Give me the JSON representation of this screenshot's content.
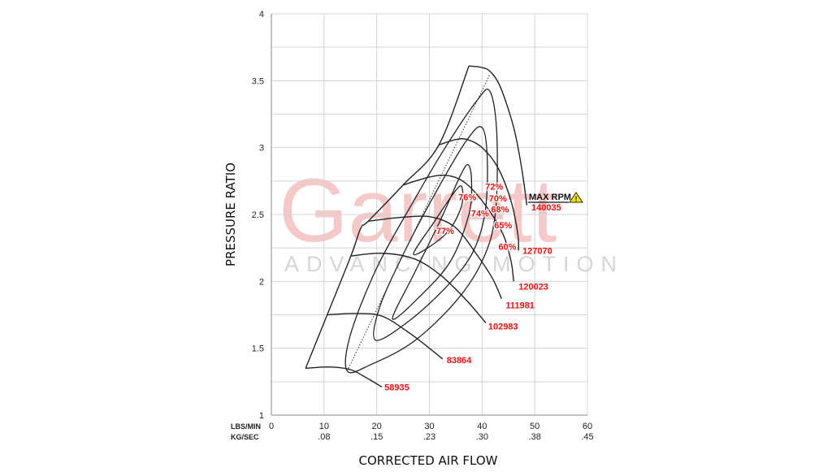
{
  "chart_data": {
    "type": "line",
    "title": "",
    "xlabel": "CORRECTED AIR FLOW",
    "ylabel": "PRESSURE RATIO",
    "xlim": [
      0,
      60
    ],
    "ylim": [
      1,
      4
    ],
    "grid": true,
    "x_unit_primary": "LBS/MIN",
    "x_unit_secondary": "KG/SEC",
    "x_ticks": [
      0,
      10,
      20,
      30,
      40,
      50,
      60
    ],
    "x_tick_labels": [
      "0",
      "10",
      "20",
      "30",
      "40",
      "50",
      "60"
    ],
    "x_secondary_tick_labels": [
      "",
      ".08",
      ".15",
      ".23",
      ".30",
      ".38",
      ".45"
    ],
    "y_ticks": [
      1,
      1.5,
      2,
      2.5,
      3,
      3.5,
      4
    ],
    "y_tick_labels": [
      "1",
      "1.5",
      "2",
      "2.5",
      "3",
      "3.5",
      "4"
    ],
    "speed_lines": [
      {
        "name": "58935",
        "points": [
          [
            6.5,
            1.35
          ],
          [
            11,
            1.36
          ],
          [
            15,
            1.34
          ],
          [
            18,
            1.28
          ],
          [
            21,
            1.21
          ]
        ]
      },
      {
        "name": "83864",
        "points": [
          [
            10.6,
            1.75
          ],
          [
            16,
            1.76
          ],
          [
            21,
            1.74
          ],
          [
            26,
            1.62
          ],
          [
            30,
            1.5
          ],
          [
            32.5,
            1.42
          ]
        ]
      },
      {
        "name": "102983",
        "points": [
          [
            15.1,
            2.19
          ],
          [
            21,
            2.21
          ],
          [
            27,
            2.17
          ],
          [
            32,
            2.05
          ],
          [
            37,
            1.86
          ],
          [
            40.7,
            1.69
          ]
        ]
      },
      {
        "name": "111981",
        "points": [
          [
            18.4,
            2.45
          ],
          [
            25,
            2.48
          ],
          [
            30.5,
            2.48
          ],
          [
            35,
            2.4
          ],
          [
            39,
            2.2
          ],
          [
            42,
            2.02
          ],
          [
            43.7,
            1.87
          ]
        ]
      },
      {
        "name": "120023",
        "points": [
          [
            25,
            2.72
          ],
          [
            30,
            2.78
          ],
          [
            33.6,
            2.79
          ],
          [
            37,
            2.73
          ],
          [
            41,
            2.55
          ],
          [
            44,
            2.35
          ],
          [
            45.5,
            2.15
          ],
          [
            46,
            2.0
          ]
        ]
      },
      {
        "name": "127070",
        "points": [
          [
            31.8,
            3.02
          ],
          [
            35,
            3.06
          ],
          [
            37.2,
            3.06
          ],
          [
            40,
            3.0
          ],
          [
            43,
            2.85
          ],
          [
            45.5,
            2.6
          ],
          [
            46.8,
            2.35
          ],
          [
            46.9,
            2.23
          ]
        ]
      },
      {
        "name": "140035",
        "points": [
          [
            37.5,
            3.61
          ],
          [
            39.8,
            3.6
          ],
          [
            41.5,
            3.57
          ],
          [
            43.5,
            3.45
          ],
          [
            46,
            3.15
          ],
          [
            47.5,
            2.85
          ],
          [
            48.5,
            2.57
          ]
        ]
      }
    ],
    "surge_line": [
      [
        6.5,
        1.35
      ],
      [
        10.6,
        1.75
      ],
      [
        15.1,
        2.19
      ],
      [
        17,
        2.4
      ],
      [
        18.4,
        2.45
      ],
      [
        25,
        2.72
      ],
      [
        31.8,
        3.02
      ],
      [
        37.5,
        3.61
      ]
    ],
    "peak_efficiency_line": [
      [
        14.4,
        1.33
      ],
      [
        41.5,
        3.55
      ]
    ],
    "efficiency_islands": [
      {
        "points": [
          [
            27,
            2.2
          ],
          [
            31,
            2.45
          ],
          [
            35,
            2.68
          ],
          [
            36.2,
            2.7
          ],
          [
            36,
            2.55
          ],
          [
            33,
            2.35
          ],
          [
            27,
            2.2
          ]
        ]
      },
      {
        "points": [
          [
            23,
            1.72
          ],
          [
            27,
            2.05
          ],
          [
            32,
            2.45
          ],
          [
            36,
            2.8
          ],
          [
            37.4,
            2.87
          ],
          [
            38,
            2.75
          ],
          [
            37.5,
            2.5
          ],
          [
            34,
            2.15
          ],
          [
            28,
            1.88
          ],
          [
            23,
            1.72
          ]
        ]
      },
      {
        "points": [
          [
            19.8,
            1.56
          ],
          [
            20.5,
            1.8
          ],
          [
            25,
            2.2
          ],
          [
            31,
            2.65
          ],
          [
            37,
            3.05
          ],
          [
            40,
            3.15
          ],
          [
            41,
            2.9
          ],
          [
            40.5,
            2.5
          ],
          [
            38,
            2.2
          ],
          [
            33,
            1.95
          ],
          [
            26,
            1.7
          ],
          [
            19.8,
            1.56
          ]
        ]
      },
      {
        "points": [
          [
            14.4,
            1.33
          ],
          [
            15,
            1.6
          ],
          [
            20,
            2.1
          ],
          [
            27,
            2.6
          ],
          [
            33,
            3.0
          ],
          [
            39,
            3.35
          ],
          [
            41.5,
            3.42
          ],
          [
            42.8,
            3.1
          ],
          [
            42.5,
            2.5
          ],
          [
            40,
            2.15
          ],
          [
            35,
            1.85
          ],
          [
            27,
            1.55
          ],
          [
            19,
            1.38
          ],
          [
            14.4,
            1.33
          ]
        ]
      }
    ],
    "efficiency_labels": [
      {
        "text": "77%",
        "at": [
          33,
          2.38
        ]
      },
      {
        "text": "76%",
        "at": [
          37.2,
          2.63
        ]
      },
      {
        "text": "74%",
        "at": [
          39.6,
          2.51
        ]
      },
      {
        "text": "72%",
        "at": [
          42.3,
          2.71
        ]
      },
      {
        "text": "70%",
        "at": [
          43,
          2.62
        ]
      },
      {
        "text": "68%",
        "at": [
          43.4,
          2.54
        ]
      },
      {
        "text": "65%",
        "at": [
          44,
          2.42
        ]
      },
      {
        "text": "60%",
        "at": [
          44.8,
          2.26
        ]
      }
    ],
    "max_rpm": {
      "label": "MAX RPM",
      "value": "140035",
      "icon": "warning-icon",
      "icon_color": "#f2e600"
    },
    "colors": {
      "lines": "#222222",
      "labels": "#ee1111",
      "grid": "#d4d4d4"
    }
  },
  "watermark": {
    "brand": "Garrett",
    "tagline": "ADVANCING MOTION"
  }
}
